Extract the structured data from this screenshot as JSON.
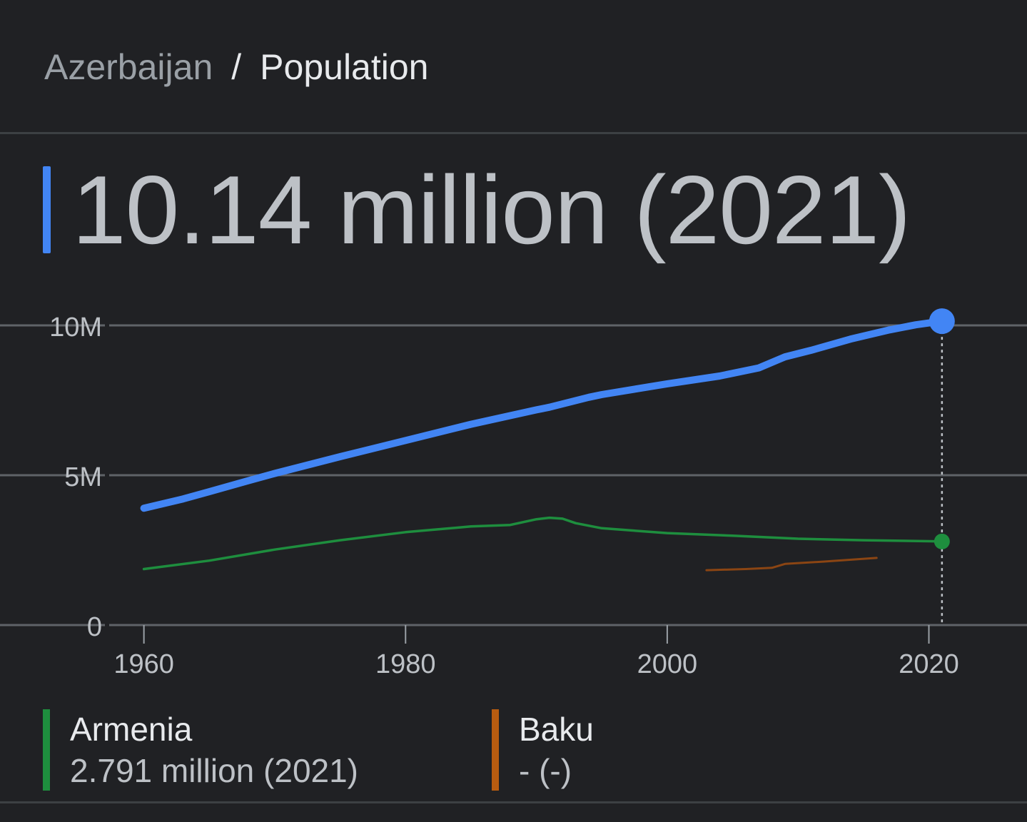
{
  "breadcrumb": {
    "parent": "Azerbaijan",
    "separator": "/",
    "current": "Population"
  },
  "headline": {
    "value": "10.14 million (2021)",
    "accent_color": "#4285f4"
  },
  "chart_data": {
    "type": "line",
    "title": "",
    "xlabel": "",
    "ylabel": "",
    "xlim": [
      1949,
      2027.5
    ],
    "ylim": [
      0,
      10
    ],
    "y_unit": "million",
    "x_ticks": [
      1960,
      1980,
      2000,
      2020
    ],
    "x_tick_labels": [
      "1960",
      "1980",
      "2000",
      "2020"
    ],
    "y_ticks": [
      0,
      5,
      10
    ],
    "y_tick_labels": [
      "0",
      "5M",
      "10M"
    ],
    "grid": "horizontal",
    "highlight_x": 2021,
    "series": [
      {
        "name": "Azerbaijan",
        "color": "#4285f4",
        "x": [
          1960,
          1963,
          1965,
          1968,
          1970,
          1975,
          1980,
          1985,
          1990,
          1991,
          1994,
          1995,
          2000,
          2004,
          2007,
          2009,
          2011,
          2014,
          2017,
          2019,
          2021
        ],
        "y": [
          3.9,
          4.21,
          4.45,
          4.82,
          5.06,
          5.62,
          6.16,
          6.7,
          7.18,
          7.27,
          7.6,
          7.69,
          8.05,
          8.31,
          8.58,
          8.95,
          9.17,
          9.54,
          9.85,
          10.02,
          10.14
        ]
      },
      {
        "name": "Armenia",
        "color": "#1e8e3e",
        "x": [
          1960,
          1965,
          1970,
          1975,
          1980,
          1985,
          1988,
          1990,
          1991,
          1992,
          1993,
          1995,
          2000,
          2005,
          2010,
          2015,
          2021
        ],
        "y": [
          1.87,
          2.15,
          2.52,
          2.83,
          3.1,
          3.29,
          3.34,
          3.53,
          3.58,
          3.55,
          3.4,
          3.23,
          3.07,
          2.98,
          2.88,
          2.83,
          2.79
        ]
      },
      {
        "name": "Baku",
        "color": "#8b4513",
        "x": [
          2003,
          2006,
          2008,
          2009,
          2012,
          2016
        ],
        "y": [
          1.83,
          1.87,
          1.91,
          2.04,
          2.12,
          2.24
        ]
      }
    ]
  },
  "legend": [
    {
      "name": "Armenia",
      "value": "2.791 million (2021)",
      "color": "#1e8e3e"
    },
    {
      "name": "Baku",
      "value": "- (-)",
      "color": "#b85c10"
    }
  ]
}
